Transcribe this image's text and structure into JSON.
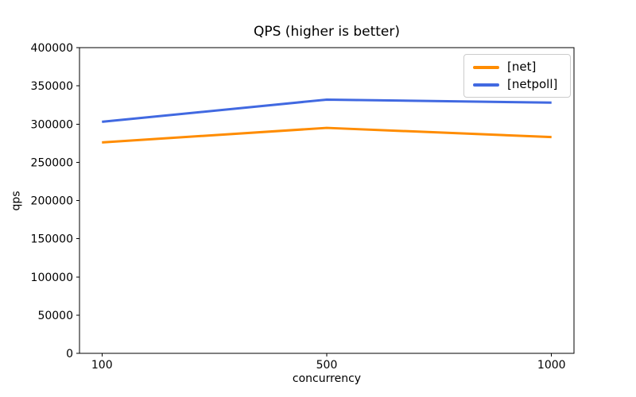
{
  "figure": {
    "background": "#ffffff"
  },
  "chart_data": {
    "type": "line",
    "title": "QPS (higher is better)",
    "xlabel": "concurrency",
    "ylabel": "qps",
    "categories": [
      "100",
      "500",
      "1000"
    ],
    "series": [
      {
        "name": "[net]",
        "color": "#ff8c00",
        "values": [
          276000,
          295000,
          283000
        ]
      },
      {
        "name": "[netpoll]",
        "color": "#4169e1",
        "values": [
          303000,
          332000,
          328000
        ]
      }
    ],
    "xlim": [
      -0.1,
      2.1
    ],
    "ylim": [
      0,
      400000
    ],
    "yticks": [
      0,
      50000,
      100000,
      150000,
      200000,
      250000,
      300000,
      350000,
      400000
    ],
    "grid": "off",
    "legend_position": "upper-right",
    "spine_color": "#000000",
    "text_color": "#000000"
  }
}
